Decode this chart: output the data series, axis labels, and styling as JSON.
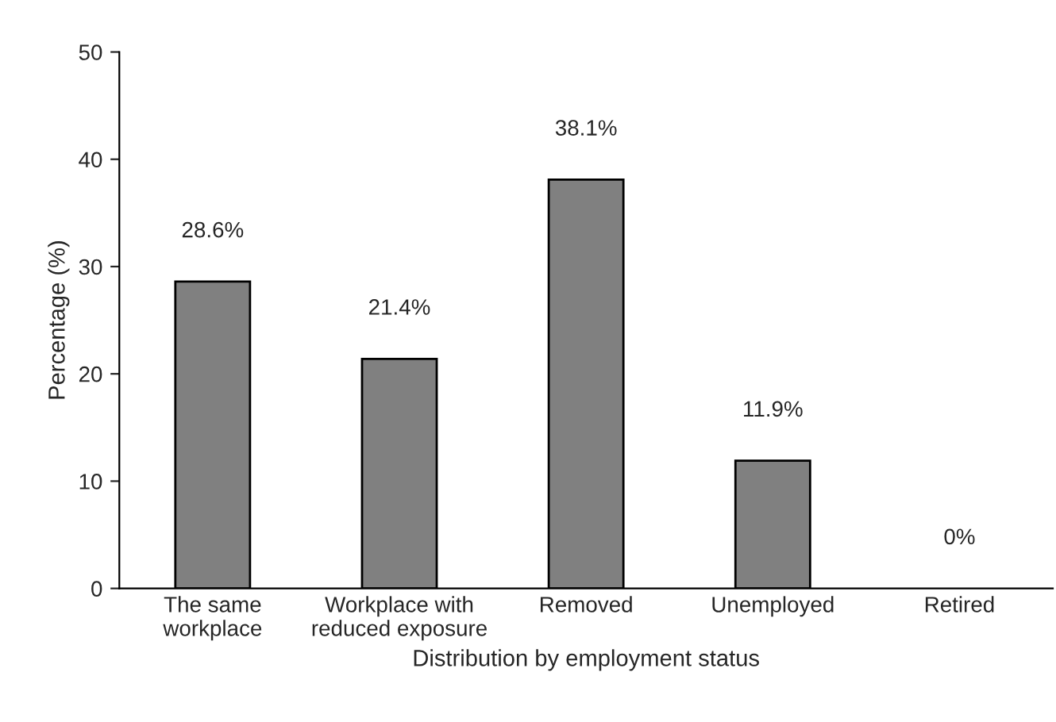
{
  "chart_data": {
    "type": "bar",
    "xlabel": "Distribution by employment status",
    "ylabel": "Percentage (%)",
    "categories": [
      "The same\nworkplace",
      "Workplace with\nreduced exposure",
      "Removed",
      "Unemployed",
      "Retired"
    ],
    "values": [
      28.6,
      21.4,
      38.1,
      11.9,
      0
    ],
    "value_labels": [
      "28.6%",
      "21.4%",
      "38.1%",
      "11.9%",
      "0%"
    ],
    "color": "#808080",
    "ylim": [
      0,
      50
    ],
    "yticks": [
      0,
      10,
      20,
      30,
      40,
      50
    ],
    "grid": false,
    "legend": false
  }
}
